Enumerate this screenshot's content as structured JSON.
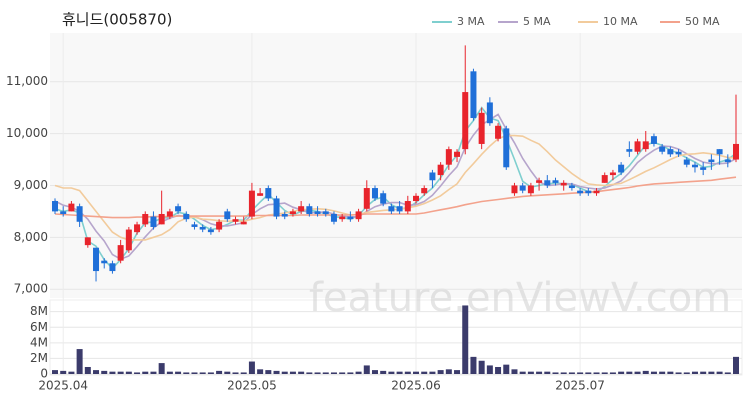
{
  "chart_data": {
    "type": "candlestick",
    "title": "휴니드(005870)",
    "watermark": "feature.enViewV.com",
    "categories": [
      null,
      "2025.04",
      null,
      null,
      null,
      null,
      null,
      null,
      null,
      null,
      null,
      null,
      null,
      null,
      null,
      null,
      null,
      null,
      null,
      null,
      null,
      null,
      null,
      null,
      "2025.05",
      null,
      null,
      null,
      null,
      null,
      null,
      null,
      null,
      null,
      null,
      null,
      null,
      null,
      null,
      null,
      null,
      null,
      null,
      null,
      "2025.06",
      null,
      null,
      null,
      null,
      null,
      null,
      null,
      null,
      null,
      null,
      null,
      null,
      null,
      null,
      null,
      null,
      null,
      null,
      null,
      "2025.07",
      null,
      null,
      null,
      null,
      null,
      null,
      null,
      null,
      null,
      null,
      null,
      null,
      null,
      null,
      null,
      null,
      null,
      null,
      null
    ],
    "open": [
      8700,
      8500,
      8500,
      8600,
      7850,
      7800,
      7550,
      7500,
      7550,
      7750,
      8100,
      8250,
      8400,
      8250,
      8400,
      8600,
      8450,
      8250,
      8200,
      8150,
      8150,
      8500,
      8300,
      8250,
      8400,
      8800,
      8950,
      8750,
      8450,
      8450,
      8500,
      8600,
      8500,
      8500,
      8450,
      8350,
      8400,
      8350,
      8550,
      8950,
      8850,
      8600,
      8600,
      8500,
      8700,
      8850,
      9250,
      9200,
      9400,
      9550,
      9700,
      11200,
      9800,
      10600,
      9900,
      10100,
      8850,
      9000,
      8850,
      9050,
      9100,
      9100,
      9000,
      9000,
      8900,
      8900,
      8850,
      9050,
      9200,
      9400,
      9700,
      9650,
      9700,
      9950,
      9750,
      9700,
      9650,
      9500,
      9400,
      9350,
      9500,
      9700,
      9500,
      9500
    ],
    "high": [
      8750,
      8600,
      8700,
      8650,
      8000,
      7800,
      7600,
      7550,
      7950,
      8200,
      8300,
      8500,
      8500,
      8900,
      8550,
      8650,
      8500,
      8300,
      8250,
      8200,
      8350,
      8550,
      8400,
      8400,
      9050,
      8950,
      9000,
      8800,
      8500,
      8550,
      8700,
      8650,
      8600,
      8550,
      8500,
      8450,
      8500,
      8550,
      9100,
      9000,
      8900,
      8650,
      8700,
      8800,
      8850,
      9000,
      9300,
      9450,
      9750,
      9700,
      11700,
      11250,
      10500,
      10700,
      10200,
      10150,
      9050,
      9050,
      9050,
      9150,
      9200,
      9150,
      9100,
      9050,
      8950,
      8950,
      8950,
      9250,
      9300,
      9450,
      9850,
      9900,
      10050,
      10000,
      9800,
      9750,
      9700,
      9550,
      9450,
      9450,
      9600,
      9700,
      9600,
      10750
    ],
    "low": [
      8450,
      8400,
      8500,
      8200,
      7800,
      7150,
      7400,
      7300,
      7500,
      7700,
      8050,
      8200,
      8150,
      8250,
      8350,
      8450,
      8300,
      8150,
      8100,
      8050,
      8100,
      8300,
      8250,
      8250,
      8350,
      8800,
      8700,
      8350,
      8350,
      8400,
      8450,
      8400,
      8400,
      8400,
      8250,
      8300,
      8300,
      8300,
      8500,
      8700,
      8600,
      8450,
      8450,
      8450,
      8650,
      8800,
      8950,
      9100,
      9300,
      9450,
      9600,
      10250,
      9700,
      10150,
      9850,
      9300,
      8800,
      8850,
      8800,
      8900,
      8950,
      9000,
      8900,
      8900,
      8800,
      8800,
      8800,
      9050,
      9100,
      9200,
      9550,
      9600,
      9650,
      9750,
      9600,
      9550,
      9550,
      9350,
      9250,
      9200,
      9300,
      9400,
      9350,
      9450
    ],
    "close": [
      8500,
      8450,
      8650,
      8300,
      8000,
      7350,
      7500,
      7350,
      7850,
      8150,
      8250,
      8450,
      8200,
      8450,
      8500,
      8500,
      8350,
      8200,
      8150,
      8100,
      8300,
      8350,
      8350,
      8300,
      8900,
      8850,
      8750,
      8400,
      8400,
      8500,
      8600,
      8450,
      8450,
      8450,
      8300,
      8400,
      8350,
      8500,
      8950,
      8750,
      8650,
      8500,
      8500,
      8700,
      8800,
      8950,
      9100,
      9400,
      9700,
      9650,
      10800,
      10300,
      10400,
      10200,
      10150,
      9350,
      9000,
      8900,
      9000,
      9100,
      9000,
      9050,
      9050,
      8950,
      8850,
      8850,
      8900,
      9200,
      9250,
      9250,
      9650,
      9850,
      9850,
      9800,
      9650,
      9600,
      9600,
      9400,
      9350,
      9300,
      9450,
      9600,
      9450,
      9800
    ],
    "volume": [
      500000,
      400000,
      300000,
      3200000,
      900000,
      500000,
      400000,
      300000,
      300000,
      300000,
      200000,
      300000,
      300000,
      1400000,
      300000,
      300000,
      200000,
      200000,
      200000,
      200000,
      400000,
      300000,
      200000,
      200000,
      1600000,
      600000,
      500000,
      400000,
      300000,
      300000,
      300000,
      200000,
      200000,
      200000,
      200000,
      200000,
      200000,
      300000,
      1100000,
      500000,
      400000,
      300000,
      300000,
      300000,
      300000,
      300000,
      300000,
      500000,
      600000,
      500000,
      8800000,
      2200000,
      1700000,
      1100000,
      900000,
      1200000,
      600000,
      300000,
      300000,
      300000,
      300000,
      200000,
      200000,
      200000,
      200000,
      200000,
      200000,
      200000,
      200000,
      300000,
      300000,
      300000,
      400000,
      300000,
      300000,
      300000,
      200000,
      200000,
      300000,
      300000,
      300000,
      300000,
      200000,
      2200000
    ],
    "up_color": "#e8242c",
    "down_color": "#1f6fd8",
    "volume_color": "#3b3b6b",
    "series": [
      {
        "name": "3 MA",
        "color": "#7fcfcf",
        "values": [
          8550,
          8500,
          8530,
          8470,
          7930,
          7830,
          7570,
          7400,
          7570,
          7780,
          8080,
          8280,
          8300,
          8370,
          8380,
          8480,
          8450,
          8350,
          8230,
          8150,
          8180,
          8250,
          8330,
          8330,
          8520,
          8680,
          8830,
          8670,
          8520,
          8430,
          8500,
          8520,
          8500,
          8450,
          8400,
          8380,
          8350,
          8420,
          8600,
          8730,
          8780,
          8630,
          8550,
          8570,
          8670,
          8820,
          8950,
          9150,
          9400,
          9580,
          10050,
          10250,
          10500,
          10300,
          10250,
          9900,
          9500,
          9080,
          8970,
          9000,
          9030,
          9050,
          9030,
          9020,
          8950,
          8880,
          8870,
          8980,
          9120,
          9230,
          9380,
          9580,
          9780,
          9830,
          9770,
          9680,
          9620,
          9530,
          9450,
          9350,
          9370,
          9450,
          9500,
          9620
        ]
      },
      {
        "name": "5 MA",
        "color": "#b6a5cc",
        "values": [
          8700,
          8620,
          8580,
          8500,
          8350,
          8120,
          7930,
          7670,
          7580,
          7640,
          7820,
          8010,
          8180,
          8300,
          8370,
          8420,
          8400,
          8400,
          8340,
          8260,
          8220,
          8220,
          8250,
          8280,
          8440,
          8550,
          8630,
          8640,
          8660,
          8580,
          8530,
          8470,
          8480,
          8490,
          8450,
          8410,
          8390,
          8400,
          8500,
          8590,
          8640,
          8670,
          8670,
          8620,
          8630,
          8690,
          8810,
          8990,
          9190,
          9360,
          9730,
          9970,
          10170,
          10270,
          10370,
          10080,
          9820,
          9520,
          9280,
          9070,
          9000,
          9010,
          9040,
          9030,
          8980,
          8950,
          8930,
          8950,
          9010,
          9090,
          9250,
          9440,
          9570,
          9680,
          9760,
          9750,
          9700,
          9610,
          9520,
          9450,
          9420,
          9420,
          9430,
          9520
        ]
      },
      {
        "name": "10 MA",
        "color": "#f2cb9c",
        "values": [
          9000,
          8950,
          8950,
          8900,
          8700,
          8500,
          8300,
          8100,
          8000,
          7950,
          7950,
          7950,
          8000,
          8050,
          8150,
          8300,
          8370,
          8390,
          8350,
          8340,
          8320,
          8310,
          8320,
          8310,
          8350,
          8380,
          8430,
          8450,
          8470,
          8500,
          8530,
          8540,
          8550,
          8540,
          8510,
          8470,
          8430,
          8440,
          8480,
          8500,
          8520,
          8530,
          8540,
          8570,
          8600,
          8650,
          8720,
          8800,
          8920,
          9030,
          9250,
          9420,
          9600,
          9760,
          9900,
          9960,
          9960,
          9950,
          9870,
          9800,
          9650,
          9490,
          9360,
          9230,
          9120,
          9030,
          9010,
          9000,
          9020,
          9040,
          9110,
          9190,
          9270,
          9340,
          9420,
          9500,
          9570,
          9600,
          9610,
          9630,
          9610,
          9580,
          9540,
          9530
        ]
      },
      {
        "name": "50 MA",
        "color": "#f3a28c",
        "values": [
          8450,
          8440,
          8430,
          8420,
          8410,
          8400,
          8390,
          8380,
          8380,
          8380,
          8390,
          8390,
          8400,
          8400,
          8400,
          8410,
          8410,
          8410,
          8410,
          8410,
          8410,
          8410,
          8410,
          8410,
          8420,
          8420,
          8420,
          8420,
          8420,
          8420,
          8430,
          8430,
          8430,
          8430,
          8430,
          8430,
          8430,
          8440,
          8450,
          8450,
          8450,
          8450,
          8450,
          8450,
          8450,
          8470,
          8500,
          8530,
          8560,
          8590,
          8630,
          8660,
          8690,
          8710,
          8730,
          8750,
          8770,
          8790,
          8800,
          8810,
          8820,
          8830,
          8840,
          8850,
          8860,
          8870,
          8880,
          8900,
          8920,
          8940,
          8960,
          8990,
          9010,
          9030,
          9040,
          9050,
          9060,
          9070,
          9080,
          9090,
          9100,
          9120,
          9140,
          9160
        ]
      }
    ],
    "ylim": [
      6850,
      11900
    ],
    "yticks": [
      {
        "value": 7000,
        "label": "7,000"
      },
      {
        "value": 8000,
        "label": "8,000"
      },
      {
        "value": 9000,
        "label": "9,000"
      },
      {
        "value": 10000,
        "label": "10,000"
      },
      {
        "value": 11000,
        "label": "11,000"
      }
    ],
    "volume_ylim": [
      0,
      9500000
    ],
    "volume_yticks": [
      0,
      {
        "value": 2000000,
        "label": "2M"
      },
      {
        "value": 4000000,
        "label": "4M"
      },
      {
        "value": 6000000,
        "label": "6M"
      },
      {
        "value": 8000000,
        "label": "8M"
      }
    ],
    "grid": true
  }
}
